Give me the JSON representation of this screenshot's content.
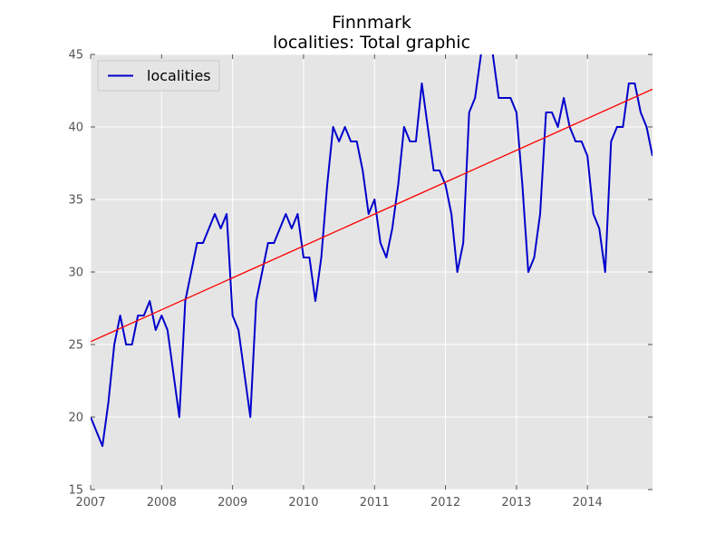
{
  "chart_data": {
    "type": "line",
    "title": "Finnmark",
    "subtitle": "localities: Total graphic",
    "xlabel": "",
    "ylabel": "",
    "xlim": [
      "2007-01",
      "2014-12"
    ],
    "ylim": [
      15,
      45
    ],
    "x_ticks": [
      "2007",
      "2008",
      "2009",
      "2010",
      "2011",
      "2012",
      "2013",
      "2014"
    ],
    "y_ticks": [
      "15",
      "20",
      "25",
      "30",
      "35",
      "40",
      "45"
    ],
    "grid": true,
    "legend_position": "top-left",
    "background_color": "#e5e5e5",
    "series": [
      {
        "name": "localities",
        "color": "#0000cc",
        "x": [
          "2007-01",
          "2007-02",
          "2007-03",
          "2007-04",
          "2007-05",
          "2007-06",
          "2007-07",
          "2007-08",
          "2007-09",
          "2007-10",
          "2007-11",
          "2007-12",
          "2008-01",
          "2008-02",
          "2008-03",
          "2008-04",
          "2008-05",
          "2008-06",
          "2008-07",
          "2008-08",
          "2008-09",
          "2008-10",
          "2008-11",
          "2008-12",
          "2009-01",
          "2009-02",
          "2009-03",
          "2009-04",
          "2009-05",
          "2009-06",
          "2009-07",
          "2009-08",
          "2009-09",
          "2009-10",
          "2009-11",
          "2009-12",
          "2010-01",
          "2010-02",
          "2010-03",
          "2010-04",
          "2010-05",
          "2010-06",
          "2010-07",
          "2010-08",
          "2010-09",
          "2010-10",
          "2010-11",
          "2010-12",
          "2011-01",
          "2011-02",
          "2011-03",
          "2011-04",
          "2011-05",
          "2011-06",
          "2011-07",
          "2011-08",
          "2011-09",
          "2011-10",
          "2011-11",
          "2011-12",
          "2012-01",
          "2012-02",
          "2012-03",
          "2012-04",
          "2012-05",
          "2012-06",
          "2012-07",
          "2012-08",
          "2012-09",
          "2012-10",
          "2012-11",
          "2012-12",
          "2013-01",
          "2013-02",
          "2013-03",
          "2013-04",
          "2013-05",
          "2013-06",
          "2013-07",
          "2013-08",
          "2013-09",
          "2013-10",
          "2013-11",
          "2013-12",
          "2014-01",
          "2014-02",
          "2014-03",
          "2014-04",
          "2014-05",
          "2014-06",
          "2014-07",
          "2014-08",
          "2014-09",
          "2014-10",
          "2014-11",
          "2014-12"
        ],
        "values": [
          20,
          19,
          18,
          21,
          25,
          27,
          25,
          25,
          27,
          27,
          28,
          26,
          27,
          26,
          23,
          20,
          28,
          30,
          32,
          32,
          33,
          34,
          33,
          34,
          27,
          26,
          23,
          20,
          28,
          30,
          32,
          32,
          33,
          34,
          33,
          34,
          31,
          31,
          28,
          31,
          36,
          40,
          39,
          40,
          39,
          39,
          37,
          34,
          35,
          32,
          31,
          33,
          36,
          40,
          39,
          39,
          43,
          40,
          37,
          37,
          36,
          34,
          30,
          32,
          41,
          42,
          45,
          46,
          45,
          42,
          42,
          42,
          41,
          36,
          30,
          31,
          34,
          41,
          41,
          40,
          42,
          40,
          39,
          39,
          38,
          34,
          33,
          30,
          39,
          40,
          40,
          43,
          43,
          41,
          40,
          38
        ]
      },
      {
        "name": "",
        "color": "#ff0000",
        "x": [
          "2007-01",
          "2014-12"
        ],
        "values": [
          25.2,
          42.6
        ]
      }
    ]
  }
}
